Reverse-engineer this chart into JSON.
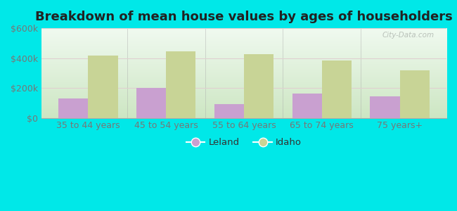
{
  "title": "Breakdown of mean house values by ages of householders",
  "categories": [
    "35 to 44 years",
    "45 to 54 years",
    "55 to 64 years",
    "65 to 74 years",
    "75 years+"
  ],
  "leland_values": [
    130000,
    200000,
    90000,
    165000,
    145000
  ],
  "idaho_values": [
    415000,
    445000,
    425000,
    385000,
    320000
  ],
  "leland_color": "#c9a0d0",
  "idaho_color": "#c8d496",
  "bar_width": 0.38,
  "ylim": [
    0,
    600000
  ],
  "yticks": [
    0,
    200000,
    400000,
    600000
  ],
  "ytick_labels": [
    "$0",
    "$200k",
    "$400k",
    "$600k"
  ],
  "outer_bg_color": "#00e8e8",
  "plot_bg_top": "#e8f5e8",
  "plot_bg_bottom": "#d4ecd4",
  "title_fontsize": 13,
  "tick_fontsize": 9,
  "legend_labels": [
    "Leland",
    "Idaho"
  ],
  "watermark": "City-Data.com"
}
